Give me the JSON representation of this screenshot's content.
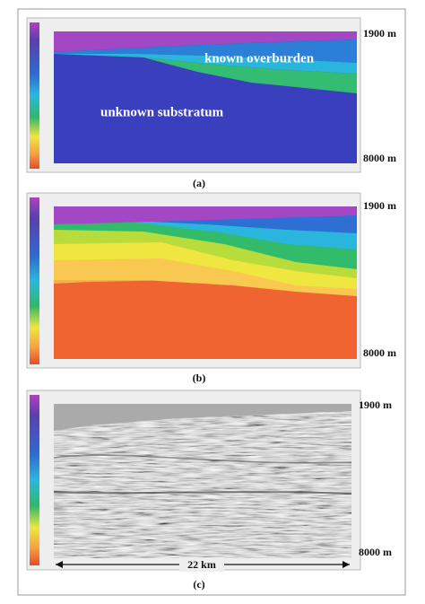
{
  "panels": [
    {
      "label": "(a)",
      "top_depth": "1900 m",
      "bottom_depth": "8000 m",
      "annotations": [
        "known overburden",
        "unknown substratum"
      ]
    },
    {
      "label": "(b)",
      "top_depth": "1900 m",
      "bottom_depth": "8000 m"
    },
    {
      "label": "(c)",
      "top_depth": "1900 m",
      "bottom_depth": "8000 m",
      "scale_bar": "22 km"
    }
  ]
}
